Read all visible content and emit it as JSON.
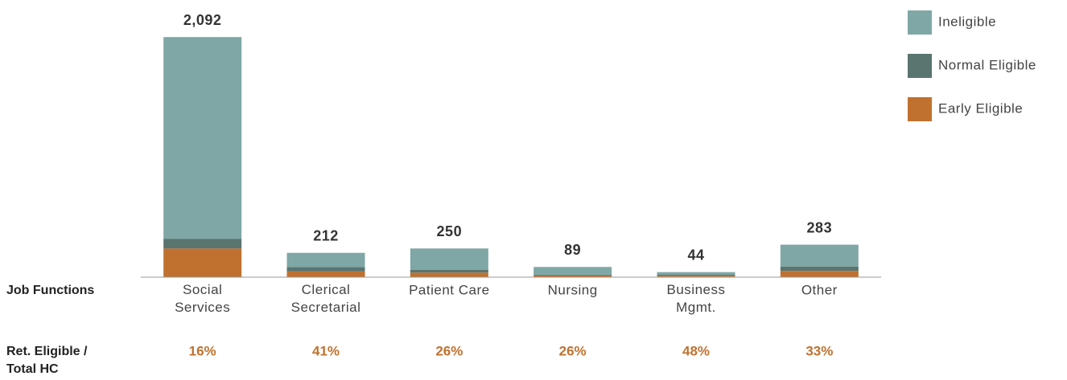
{
  "chart_data": {
    "type": "stacked_bar",
    "row_label": "Job Functions",
    "categories": [
      "Social\nServices",
      "Clerical\nSecretarial",
      "Patient Care",
      "Nursing",
      "Business\nMgmt.",
      "Other"
    ],
    "series": [
      {
        "name": "Early Eligible",
        "color": "#c0712f",
        "values": [
          250,
          50,
          40,
          15,
          13,
          55
        ]
      },
      {
        "name": "Normal Eligible",
        "color": "#5a7470",
        "values": [
          85,
          37,
          25,
          8,
          8,
          38
        ]
      },
      {
        "name": "Ineligible",
        "color": "#7fa7a5",
        "values": [
          1757,
          125,
          185,
          66,
          23,
          190
        ]
      }
    ],
    "totals": [
      2092,
      212,
      250,
      89,
      44,
      283
    ],
    "total_labels": [
      "2,092",
      "212",
      "250",
      "89",
      "44",
      "283"
    ],
    "ratio_label": "Ret. Eligible /\nTotal HC",
    "ratios": [
      16,
      41,
      26,
      26,
      48,
      33
    ],
    "ratio_labels": [
      "16%",
      "41%",
      "26%",
      "26%",
      "48%",
      "33%"
    ],
    "ylim": [
      0,
      2100
    ],
    "legend": "top-right"
  }
}
